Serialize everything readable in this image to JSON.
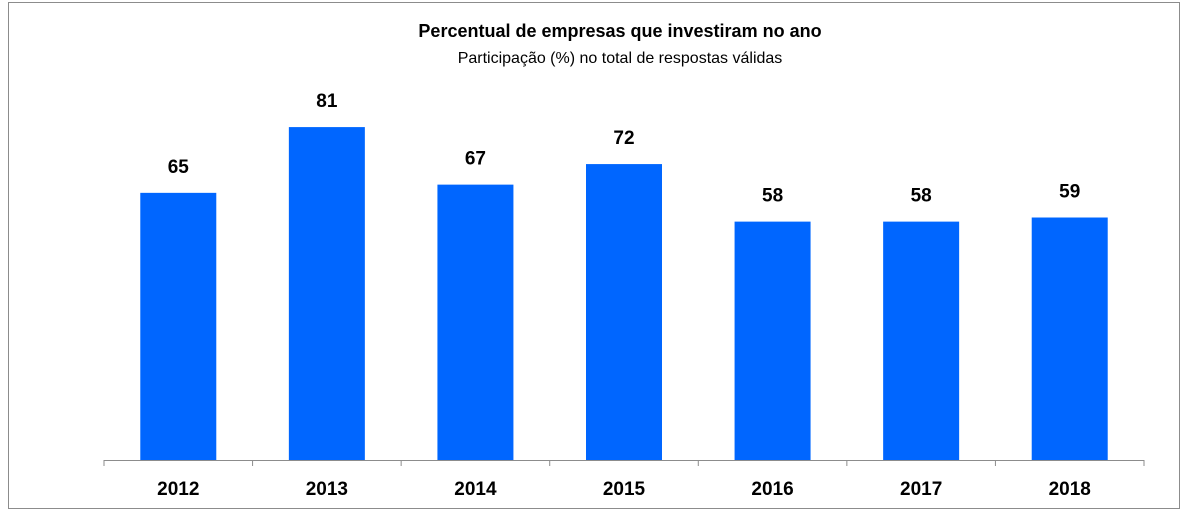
{
  "chart_data": {
    "type": "bar",
    "title": "Percentual de empresas que investiram no ano",
    "subtitle": "Participação (%) no total de respostas  válidas",
    "categories": [
      "2012",
      "2013",
      "2014",
      "2015",
      "2016",
      "2017",
      "2018"
    ],
    "values": [
      65,
      81,
      67,
      72,
      58,
      58,
      59
    ],
    "color": "#0066ff",
    "ylim": [
      0,
      100
    ]
  }
}
